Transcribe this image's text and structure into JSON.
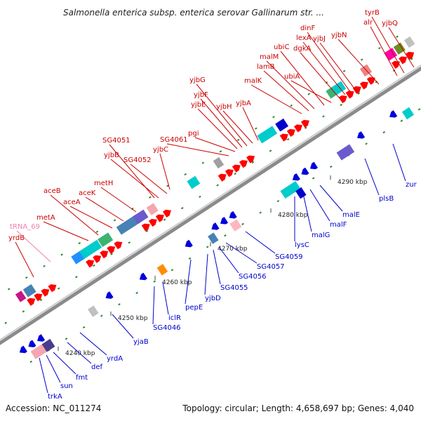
{
  "title": "Salmonella enterica subsp. enterica serovar Gallinarum str. ...",
  "footer": {
    "accession": "Accession: NC_011274",
    "summary": "Topology: circular; Length: 4,658,697 bp; Genes: 4,040"
  },
  "colors": {
    "top_label": "#cc0000",
    "bottom_label": "#0000cc",
    "rna_label": "#ee7fb0"
  },
  "ticks": [
    "4240 kbp",
    "4250 kbp",
    "4260 kbp",
    "4270 kbp",
    "4280 kbp",
    "4290 kbp"
  ],
  "top_genes": [
    "yrdB",
    "tRNA_69",
    "metA",
    "aceB",
    "aceA",
    "aceK",
    "metH",
    "yjbB",
    "SG4051",
    "SG4052",
    "yjbC",
    "SG4061",
    "pgi",
    "yjbE",
    "yjbF",
    "yjbG",
    "yjbH",
    "yjbA",
    "malK",
    "lamB",
    "malM",
    "ubiC",
    "ubiA",
    "dgkA",
    "lexA",
    "dinF",
    "yjbJ",
    "yjbN",
    "alr",
    "tyrB",
    "yjbQ"
  ],
  "bottom_genes": [
    "trkA",
    "sun",
    "fmt",
    "def",
    "yrdA",
    "yjaB",
    "SG4046",
    "iclR",
    "pepE",
    "yjbD",
    "SG4055",
    "SG4056",
    "SG4057",
    "SG4059",
    "lysC",
    "malG",
    "malF",
    "malE",
    "plsB",
    "zur"
  ]
}
